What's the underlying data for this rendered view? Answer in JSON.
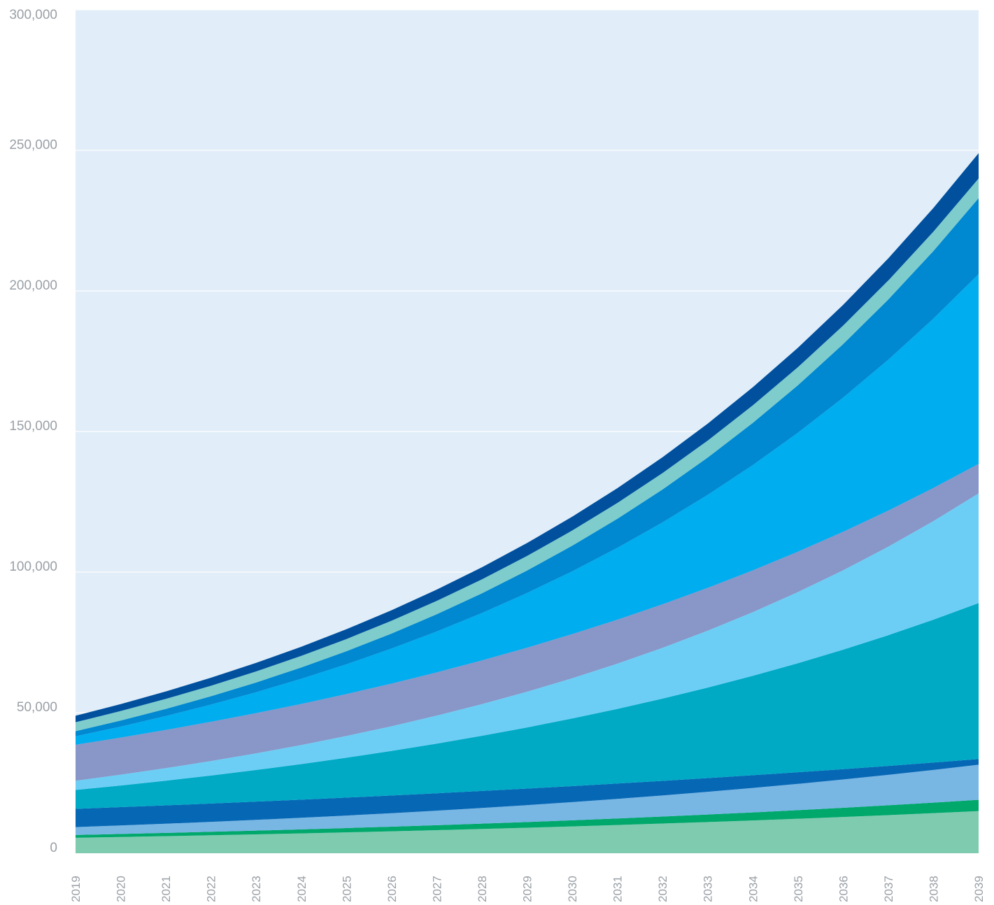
{
  "chart_data": {
    "type": "area",
    "stacked": true,
    "background_color": "#e1edf8",
    "grid": true,
    "ylim": [
      0,
      300000
    ],
    "y_ticks": [
      0,
      50000,
      100000,
      150000,
      200000,
      250000,
      300000
    ],
    "y_tick_labels": [
      "0",
      "50,000",
      "100,000",
      "150,000",
      "200,000",
      "250,000",
      "300,000"
    ],
    "x": [
      "2019",
      "2020",
      "2021",
      "2022",
      "2023",
      "2024",
      "2025",
      "2026",
      "2027",
      "2028",
      "2029",
      "2030",
      "2031",
      "2032",
      "2033",
      "2034",
      "2035",
      "2036",
      "2037",
      "2038",
      "2039"
    ],
    "start_totals": [
      5500,
      6500,
      9300,
      15800,
      22500,
      25800,
      38600,
      41600,
      43400,
      46600
    ],
    "end_totals": [
      15000,
      19000,
      31500,
      33500,
      89000,
      128000,
      138500,
      206000,
      233000,
      240000,
      249000
    ],
    "series": [
      {
        "color": "#7ecbb0"
      },
      {
        "color": "#00a86b"
      },
      {
        "color": "#78b6e4"
      },
      {
        "color": "#0668b5"
      },
      {
        "color": "#00aac5"
      },
      {
        "color": "#6dcef5"
      },
      {
        "color": "#8896c8"
      },
      {
        "color": "#00adef"
      },
      {
        "color": "#0088d1"
      },
      {
        "color": "#7ecccb"
      },
      {
        "color": "#00509e"
      }
    ]
  }
}
